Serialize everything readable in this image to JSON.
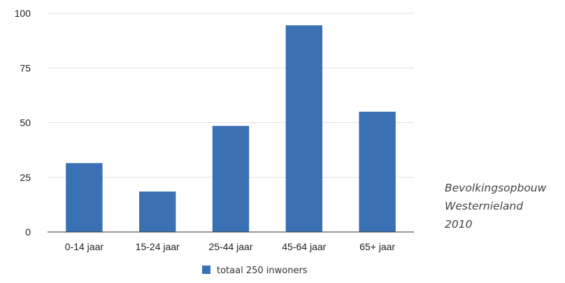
{
  "chart_data": {
    "type": "bar",
    "categories": [
      "0-14 jaar",
      "15-24 jaar",
      "25-44 jaar",
      "45-64 jaar",
      "65+ jaar"
    ],
    "series": [
      {
        "name": "totaal 250 inwoners",
        "values": [
          31.5,
          18.5,
          48.5,
          94.5,
          55
        ],
        "color": "#3a70b4"
      }
    ],
    "yticks": [
      0,
      25,
      50,
      75,
      100
    ],
    "ylim": [
      0,
      100
    ],
    "grid": true,
    "legend_position": "bottom-center"
  },
  "caption": {
    "lines": [
      "Bevolkingsopbouw",
      "Westernieland",
      "2010"
    ]
  }
}
